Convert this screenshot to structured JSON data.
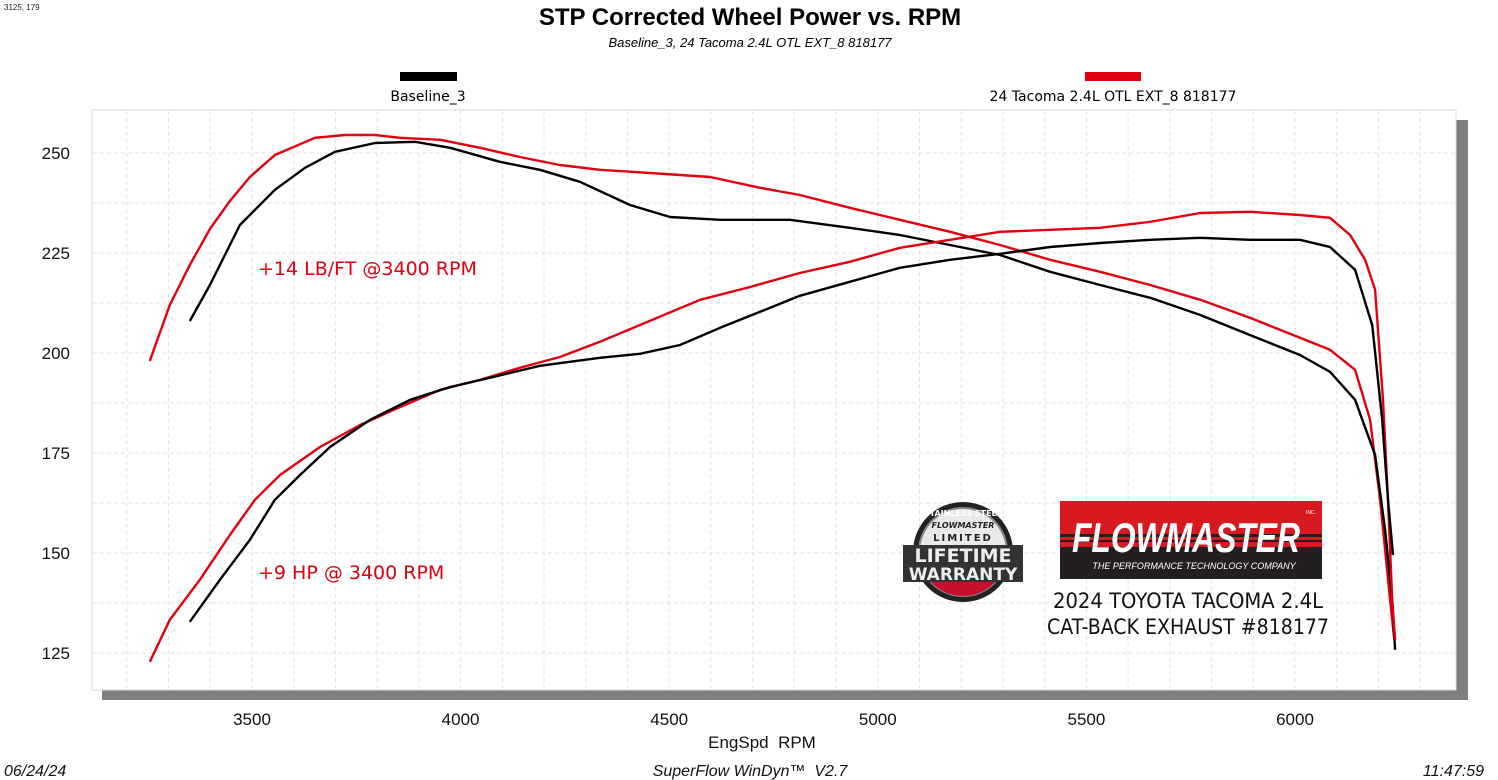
{
  "corner_readout": "3125, 179",
  "chart_data": {
    "type": "line",
    "title": "STP Corrected Wheel Power vs. RPM",
    "subtitle": "Baseline_3, 24 Tacoma 2.4L OTL EXT_8 818177",
    "xlabel": "EngSpd  RPM",
    "ylabel": "",
    "xlim": [
      3120,
      6380
    ],
    "ylim": [
      115,
      260
    ],
    "xticks": [
      3500,
      4000,
      4500,
      5000,
      5500,
      6000
    ],
    "yticks": [
      125,
      150,
      175,
      200,
      225,
      250
    ],
    "grid": true,
    "legend_position": "top",
    "legend": [
      {
        "name": "Baseline_3",
        "color": "#000000"
      },
      {
        "name": "24 Tacoma 2.4L OTL EXT_8 818177",
        "color": "#e0000f"
      }
    ],
    "series": [
      {
        "legend_index": 1,
        "color": "#e0000f",
        "points": [
          [
            3255,
            198
          ],
          [
            3303,
            212
          ],
          [
            3351,
            222
          ],
          [
            3399,
            231
          ],
          [
            3447,
            238
          ],
          [
            3495,
            244
          ],
          [
            3555,
            249.5
          ],
          [
            3651,
            253.8
          ],
          [
            3723,
            254.5
          ],
          [
            3795,
            254.5
          ],
          [
            3855,
            253.8
          ],
          [
            3951,
            253.3
          ],
          [
            4047,
            251.3
          ],
          [
            4142,
            249
          ],
          [
            4238,
            247
          ],
          [
            4334,
            245.8
          ],
          [
            4454,
            245
          ],
          [
            4598,
            244
          ],
          [
            4718,
            241.3
          ],
          [
            4813,
            239.5
          ],
          [
            4933,
            236.3
          ],
          [
            5053,
            233.3
          ],
          [
            5173,
            230.3
          ],
          [
            5293,
            227
          ],
          [
            5413,
            223.3
          ],
          [
            5533,
            220.3
          ],
          [
            5653,
            217
          ],
          [
            5773,
            213.3
          ],
          [
            5892,
            208.8
          ],
          [
            6012,
            203.8
          ],
          [
            6084,
            200.8
          ],
          [
            6144,
            195.8
          ],
          [
            6180,
            183.3
          ],
          [
            6204,
            163.3
          ],
          [
            6228,
            138.3
          ],
          [
            6238,
            128.3
          ]
        ]
      },
      {
        "legend_index": 0,
        "color": "#000000",
        "points": [
          [
            3351,
            208
          ],
          [
            3399,
            217
          ],
          [
            3471,
            232
          ],
          [
            3555,
            240.8
          ],
          [
            3627,
            246.3
          ],
          [
            3699,
            250.3
          ],
          [
            3795,
            252.5
          ],
          [
            3891,
            252.8
          ],
          [
            3975,
            251.3
          ],
          [
            4094,
            247.8
          ],
          [
            4190,
            245.8
          ],
          [
            4286,
            242.8
          ],
          [
            4406,
            237
          ],
          [
            4502,
            234
          ],
          [
            4622,
            233.3
          ],
          [
            4789,
            233.3
          ],
          [
            4933,
            231.3
          ],
          [
            5053,
            229.5
          ],
          [
            5173,
            227
          ],
          [
            5293,
            224.5
          ],
          [
            5413,
            220.3
          ],
          [
            5533,
            217
          ],
          [
            5653,
            213.8
          ],
          [
            5773,
            209.5
          ],
          [
            5892,
            204.5
          ],
          [
            6012,
            199.5
          ],
          [
            6084,
            195.3
          ],
          [
            6144,
            188.3
          ],
          [
            6192,
            174.5
          ],
          [
            6216,
            155.8
          ],
          [
            6233,
            138.3
          ],
          [
            6240,
            125.8
          ]
        ]
      },
      {
        "legend_index": 1,
        "color": "#e0000f",
        "points": [
          [
            3255,
            122.8
          ],
          [
            3303,
            133.3
          ],
          [
            3375,
            143.3
          ],
          [
            3447,
            154.5
          ],
          [
            3507,
            163.3
          ],
          [
            3567,
            169.5
          ],
          [
            3663,
            176.5
          ],
          [
            3759,
            182
          ],
          [
            3855,
            186.5
          ],
          [
            3951,
            190.8
          ],
          [
            4047,
            193.3
          ],
          [
            4142,
            196.3
          ],
          [
            4238,
            199
          ],
          [
            4334,
            202.8
          ],
          [
            4430,
            207
          ],
          [
            4574,
            213.3
          ],
          [
            4694,
            216.5
          ],
          [
            4813,
            220
          ],
          [
            4933,
            222.8
          ],
          [
            5053,
            226.3
          ],
          [
            5173,
            228.3
          ],
          [
            5293,
            230.3
          ],
          [
            5413,
            230.8
          ],
          [
            5533,
            231.3
          ],
          [
            5653,
            232.8
          ],
          [
            5773,
            235
          ],
          [
            5892,
            235.3
          ],
          [
            6012,
            234.5
          ],
          [
            6084,
            233.8
          ],
          [
            6132,
            229.5
          ],
          [
            6168,
            223.3
          ],
          [
            6192,
            215.8
          ],
          [
            6211,
            188.3
          ],
          [
            6223,
            163.3
          ],
          [
            6233,
            138.3
          ],
          [
            6240,
            128.3
          ]
        ]
      },
      {
        "legend_index": 0,
        "color": "#000000",
        "points": [
          [
            3351,
            132.8
          ],
          [
            3423,
            143.3
          ],
          [
            3495,
            153.3
          ],
          [
            3555,
            163.3
          ],
          [
            3615,
            169.5
          ],
          [
            3687,
            176.5
          ],
          [
            3783,
            183.3
          ],
          [
            3879,
            188.3
          ],
          [
            3975,
            191.5
          ],
          [
            4070,
            193.8
          ],
          [
            4190,
            196.8
          ],
          [
            4334,
            198.8
          ],
          [
            4430,
            199.8
          ],
          [
            4526,
            202
          ],
          [
            4622,
            206.3
          ],
          [
            4718,
            210.3
          ],
          [
            4813,
            214.3
          ],
          [
            4933,
            217.8
          ],
          [
            5053,
            221.3
          ],
          [
            5173,
            223.3
          ],
          [
            5293,
            224.8
          ],
          [
            5413,
            226.5
          ],
          [
            5533,
            227.5
          ],
          [
            5653,
            228.3
          ],
          [
            5773,
            228.8
          ],
          [
            5892,
            228.3
          ],
          [
            6012,
            228.3
          ],
          [
            6084,
            226.5
          ],
          [
            6144,
            220.8
          ],
          [
            6185,
            207
          ],
          [
            6209,
            183.3
          ],
          [
            6223,
            163.3
          ],
          [
            6235,
            149.5
          ]
        ]
      }
    ],
    "annotations": [
      {
        "text": "+14 LB/FT @3400 RPM",
        "color": "#e0000f"
      },
      {
        "text": "+9 HP @ 3400 RPM",
        "color": "#e0000f"
      }
    ]
  },
  "warranty_logo": {
    "arc_text": "STAINLESS STEEL",
    "brand": "FLOWMASTER",
    "line1": "LIMITED",
    "line2": "LIFETIME",
    "line3": "WARRANTY"
  },
  "brand_logo": {
    "name": "FLOWMASTER",
    "tagline": "THE PERFORMANCE TECHNOLOGY COMPANY",
    "inc": "INC."
  },
  "product": {
    "line1": "2024 TOYOTA TACOMA 2.4L",
    "line2": "CAT-BACK EXHAUST #818177"
  },
  "footer": {
    "date": "06/24/24",
    "software": "SuperFlow WinDyn™  V2.7",
    "time": "11:47:59"
  }
}
